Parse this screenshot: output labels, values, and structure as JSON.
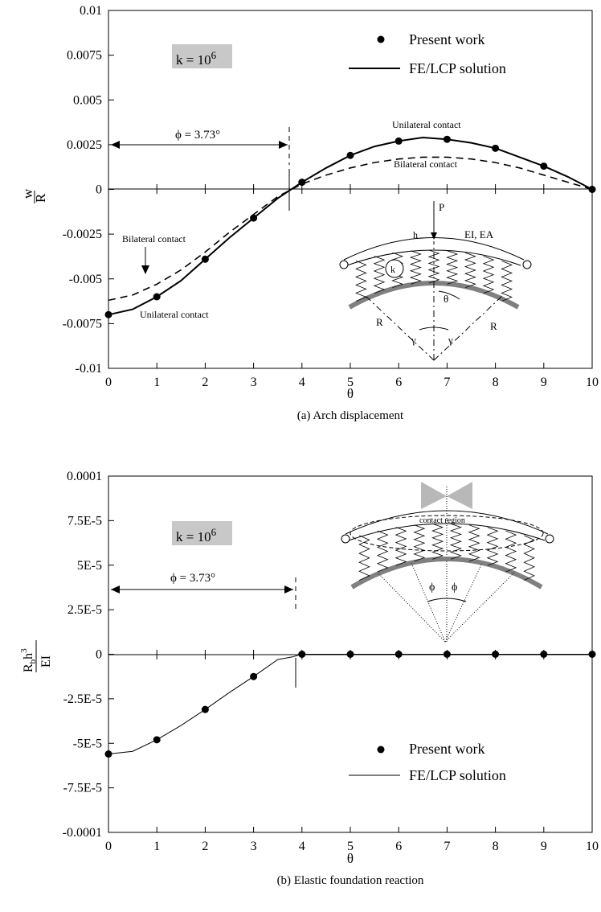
{
  "chart_data": [
    {
      "type": "line",
      "caption": "(a) Arch displacement",
      "xlabel": "θ",
      "ylabel_num": "w",
      "ylabel_den": "R",
      "xlim": [
        0,
        10
      ],
      "ylim": [
        -0.01,
        0.01
      ],
      "xticks": [
        0,
        1,
        2,
        3,
        4,
        5,
        6,
        7,
        8,
        9,
        10
      ],
      "xtick_labels": [
        "0",
        "1",
        "2",
        "3",
        "4",
        "5",
        "6",
        "7",
        "8",
        "9",
        "10"
      ],
      "yticks": [
        0.01,
        0.0075,
        0.005,
        0.0025,
        0,
        -0.0025,
        -0.005,
        -0.0075,
        -0.01
      ],
      "ytick_labels": [
        "0.01",
        "0.0075",
        "0.005",
        "0.0025",
        "0",
        "-0.0025",
        "-0.005",
        "-0.0075",
        "-0.01"
      ],
      "k_label_base": "k = 10",
      "k_label_exp": "6",
      "phi_label": "ϕ = 3.73°",
      "phi_x": 3.8,
      "legend": {
        "position": "top-right",
        "markers_label": "Present work",
        "line_label": "FE/LCP solution"
      },
      "series": [
        {
          "name": "Present work",
          "style": "markers",
          "x": [
            0,
            1,
            2,
            3,
            4,
            5,
            6,
            7,
            8,
            9,
            10
          ],
          "y": [
            -0.007,
            -0.006,
            -0.0039,
            -0.0016,
            0.0004,
            0.0019,
            0.0027,
            0.0028,
            0.0023,
            0.0013,
            0.0
          ]
        },
        {
          "name": "Unilateral contact",
          "style": "solid",
          "x": [
            0,
            0.5,
            1,
            1.5,
            2,
            2.5,
            3,
            3.5,
            4,
            4.5,
            5,
            5.5,
            6,
            6.5,
            7,
            7.5,
            8,
            8.5,
            9,
            9.5,
            10
          ],
          "y": [
            -0.007,
            -0.0067,
            -0.006,
            -0.0051,
            -0.0039,
            -0.0027,
            -0.0016,
            -0.0005,
            0.0004,
            0.0012,
            0.0019,
            0.0024,
            0.0027,
            0.0029,
            0.0028,
            0.0026,
            0.0023,
            0.0018,
            0.0013,
            0.0007,
            0.0
          ]
        },
        {
          "name": "Bilateral contact",
          "style": "dashed",
          "x": [
            0,
            0.5,
            1,
            1.5,
            2,
            2.5,
            3,
            3.5,
            4,
            4.5,
            5,
            5.5,
            6,
            6.5,
            7,
            7.5,
            8,
            8.5,
            9,
            9.5,
            10
          ],
          "y": [
            -0.0062,
            -0.0059,
            -0.0053,
            -0.0045,
            -0.0035,
            -0.0024,
            -0.0014,
            -0.0004,
            0.0003,
            0.0008,
            0.0012,
            0.0015,
            0.0017,
            0.0018,
            0.0018,
            0.0017,
            0.0015,
            0.0012,
            0.0008,
            0.0004,
            0.0
          ]
        }
      ],
      "annotations": {
        "unilateral_top": "Unilateral contact",
        "bilateral_top": "Bilateral contact",
        "bilateral_left": "Bilateral contact",
        "unilateral_left": "Unilateral contact"
      },
      "inset": {
        "P": "P",
        "h": "h",
        "EI_EA": "EI, EA",
        "k": "k",
        "R_left": "R",
        "R_right": "R",
        "theta": "θ",
        "gamma_left": "γ",
        "gamma_right": "γ"
      }
    },
    {
      "type": "line",
      "caption": "(b) Elastic foundation reaction",
      "xlabel": "θ",
      "ylabel_num": "R",
      "ylabel_num_sub": "b",
      "ylabel_num_tail": "h",
      "ylabel_num_sup": "3",
      "ylabel_den": "EI",
      "xlim": [
        0,
        10
      ],
      "ylim": [
        -0.0001,
        0.0001
      ],
      "xticks": [
        0,
        1,
        2,
        3,
        4,
        5,
        6,
        7,
        8,
        9,
        10
      ],
      "xtick_labels": [
        "0",
        "1",
        "2",
        "3",
        "4",
        "5",
        "6",
        "7",
        "8",
        "9",
        "10"
      ],
      "yticks": [
        0.0001,
        7.5e-05,
        5e-05,
        2.5e-05,
        0,
        -2.5e-05,
        -5e-05,
        -7.5e-05,
        -0.0001
      ],
      "ytick_labels": [
        "0.0001",
        "7.5E-5",
        "5E-5",
        "2.5E-5",
        "0",
        "-2.5E-5",
        "-5E-5",
        "-7.5E-5",
        "-0.0001"
      ],
      "k_label_base": "k = 10",
      "k_label_exp": "6",
      "phi_label": "ϕ = 3.73°",
      "phi_x": 3.8,
      "legend": {
        "position": "bottom-right",
        "markers_label": "Present work",
        "line_label": "FE/LCP solution"
      },
      "series": [
        {
          "name": "Present work",
          "style": "markers",
          "x": [
            0,
            1,
            2,
            3,
            4,
            5,
            6,
            7,
            8,
            9,
            10
          ],
          "y": [
            -5.6e-05,
            -4.8e-05,
            -3.1e-05,
            -1.25e-05,
            0,
            0,
            0,
            0,
            0,
            0,
            0
          ]
        },
        {
          "name": "FE/LCP solution",
          "style": "solid-thin",
          "x": [
            0,
            0.5,
            1,
            1.5,
            2,
            2.5,
            3,
            3.5,
            3.8,
            4,
            10
          ],
          "y": [
            -5.6e-05,
            -5.45e-05,
            -4.8e-05,
            -4e-05,
            -3.1e-05,
            -2.15e-05,
            -1.25e-05,
            -3e-06,
            -1.5e-06,
            0,
            0
          ]
        }
      ],
      "inset": {
        "contact_region": "contact region",
        "phi_left": "ϕ",
        "phi_right": "ϕ"
      }
    }
  ]
}
